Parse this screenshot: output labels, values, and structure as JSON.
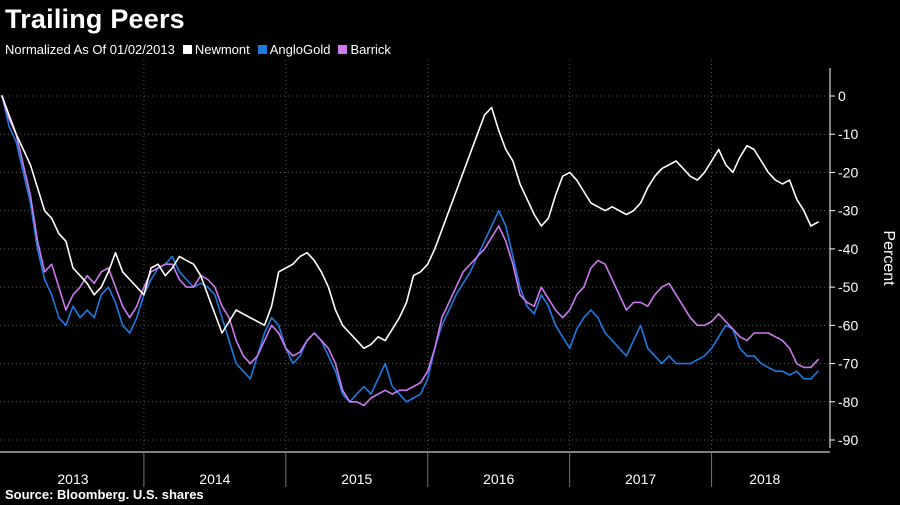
{
  "title": "Trailing Peers",
  "subtitle": "Normalized As Of 01/02/2013",
  "source": "Source: Bloomberg. U.S. shares",
  "colors": {
    "newmont": "#ffffff",
    "anglogold": "#1f7ae0",
    "barrick": "#cc7af0"
  },
  "chart_data": {
    "type": "line",
    "title": "Trailing Peers",
    "subtitle": "Normalized As Of 01/02/2013",
    "xlabel": "",
    "ylabel": "Percent",
    "ylim": [
      -90,
      0
    ],
    "xlim": [
      2013.0,
      2018.75
    ],
    "yticks": [
      0,
      -10,
      -20,
      -30,
      -40,
      -50,
      -60,
      -70,
      -80,
      -90
    ],
    "ytick_labels": [
      "0",
      "-10",
      "-20",
      "-30",
      "-40",
      "-50",
      "-60",
      "-70",
      "-80",
      "-90"
    ],
    "xticks": [
      "2013",
      "2014",
      "2015",
      "2016",
      "2017",
      "2018"
    ],
    "grid": true,
    "legend_position": "top-left",
    "series": [
      {
        "name": "Newmont",
        "color": "#ffffff",
        "x": [
          2013.0,
          2013.05,
          2013.1,
          2013.15,
          2013.2,
          2013.25,
          2013.3,
          2013.35,
          2013.4,
          2013.45,
          2013.5,
          2013.55,
          2013.6,
          2013.65,
          2013.7,
          2013.75,
          2013.8,
          2013.85,
          2013.9,
          2013.95,
          2014.0,
          2014.05,
          2014.1,
          2014.15,
          2014.2,
          2014.25,
          2014.3,
          2014.35,
          2014.4,
          2014.45,
          2014.5,
          2014.55,
          2014.6,
          2014.65,
          2014.7,
          2014.75,
          2014.8,
          2014.85,
          2014.9,
          2014.95,
          2015.0,
          2015.05,
          2015.1,
          2015.15,
          2015.2,
          2015.25,
          2015.3,
          2015.35,
          2015.4,
          2015.45,
          2015.5,
          2015.55,
          2015.6,
          2015.65,
          2015.7,
          2015.75,
          2015.8,
          2015.85,
          2015.9,
          2015.95,
          2016.0,
          2016.05,
          2016.1,
          2016.15,
          2016.2,
          2016.25,
          2016.3,
          2016.35,
          2016.4,
          2016.45,
          2016.5,
          2016.55,
          2016.6,
          2016.65,
          2016.7,
          2016.75,
          2016.8,
          2016.85,
          2016.9,
          2016.95,
          2017.0,
          2017.05,
          2017.1,
          2017.15,
          2017.2,
          2017.25,
          2017.3,
          2017.35,
          2017.4,
          2017.45,
          2017.5,
          2017.55,
          2017.6,
          2017.65,
          2017.7,
          2017.75,
          2017.8,
          2017.85,
          2017.9,
          2017.95,
          2018.0,
          2018.05,
          2018.1,
          2018.15,
          2018.2,
          2018.25,
          2018.3,
          2018.35,
          2018.4,
          2018.45,
          2018.5,
          2018.55,
          2018.6,
          2018.65,
          2018.7,
          2018.75
        ],
        "values": [
          0,
          -5,
          -10,
          -14,
          -18,
          -24,
          -30,
          -32,
          -36,
          -38,
          -45,
          -47,
          -49,
          -52,
          -50,
          -46,
          -41,
          -46,
          -48,
          -50,
          -52,
          -45,
          -44,
          -47,
          -45,
          -42,
          -43,
          -44,
          -47,
          -52,
          -57,
          -62,
          -59,
          -56,
          -57,
          -58,
          -59,
          -60,
          -55,
          -46,
          -45,
          -44,
          -42,
          -41,
          -43,
          -46,
          -50,
          -56,
          -60,
          -62,
          -64,
          -66,
          -65,
          -63,
          -64,
          -61,
          -58,
          -54,
          -47,
          -46,
          -44,
          -40,
          -35,
          -30,
          -25,
          -20,
          -15,
          -10,
          -5,
          -3,
          -9,
          -14,
          -17,
          -23,
          -27,
          -31,
          -34,
          -32,
          -26,
          -21,
          -20,
          -22,
          -25,
          -28,
          -29,
          -30,
          -29,
          -30,
          -31,
          -30,
          -28,
          -24,
          -21,
          -19,
          -18,
          -17,
          -19,
          -21,
          -22,
          -20,
          -17,
          -14,
          -18,
          -20,
          -16,
          -13,
          -14,
          -17,
          -20,
          -22,
          -23,
          -22,
          -27,
          -30,
          -34,
          -33
        ]
      },
      {
        "name": "AngloGold",
        "color": "#1f7ae0",
        "x": [
          2013.0,
          2013.05,
          2013.1,
          2013.15,
          2013.2,
          2013.25,
          2013.3,
          2013.35,
          2013.4,
          2013.45,
          2013.5,
          2013.55,
          2013.6,
          2013.65,
          2013.7,
          2013.75,
          2013.8,
          2013.85,
          2013.9,
          2013.95,
          2014.0,
          2014.05,
          2014.1,
          2014.15,
          2014.2,
          2014.25,
          2014.3,
          2014.35,
          2014.4,
          2014.45,
          2014.5,
          2014.55,
          2014.6,
          2014.65,
          2014.7,
          2014.75,
          2014.8,
          2014.85,
          2014.9,
          2014.95,
          2015.0,
          2015.05,
          2015.1,
          2015.15,
          2015.2,
          2015.25,
          2015.3,
          2015.35,
          2015.4,
          2015.45,
          2015.5,
          2015.55,
          2015.6,
          2015.65,
          2015.7,
          2015.75,
          2015.8,
          2015.85,
          2015.9,
          2015.95,
          2016.0,
          2016.05,
          2016.1,
          2016.15,
          2016.2,
          2016.25,
          2016.3,
          2016.35,
          2016.4,
          2016.45,
          2016.5,
          2016.55,
          2016.6,
          2016.65,
          2016.7,
          2016.75,
          2016.8,
          2016.85,
          2016.9,
          2016.95,
          2017.0,
          2017.05,
          2017.1,
          2017.15,
          2017.2,
          2017.25,
          2017.3,
          2017.35,
          2017.4,
          2017.45,
          2017.5,
          2017.55,
          2017.6,
          2017.65,
          2017.7,
          2017.75,
          2017.8,
          2017.85,
          2017.9,
          2017.95,
          2018.0,
          2018.05,
          2018.1,
          2018.15,
          2018.2,
          2018.25,
          2018.3,
          2018.35,
          2018.4,
          2018.45,
          2018.5,
          2018.55,
          2018.6,
          2018.65,
          2018.7,
          2018.75
        ],
        "values": [
          0,
          -8,
          -12,
          -20,
          -28,
          -40,
          -48,
          -52,
          -58,
          -60,
          -55,
          -58,
          -56,
          -58,
          -52,
          -50,
          -54,
          -60,
          -62,
          -58,
          -52,
          -48,
          -45,
          -44,
          -42,
          -46,
          -48,
          -50,
          -49,
          -50,
          -52,
          -58,
          -64,
          -70,
          -72,
          -74,
          -68,
          -62,
          -58,
          -60,
          -66,
          -70,
          -68,
          -64,
          -62,
          -64,
          -68,
          -72,
          -78,
          -80,
          -78,
          -76,
          -78,
          -74,
          -70,
          -76,
          -78,
          -80,
          -79,
          -78,
          -74,
          -66,
          -60,
          -56,
          -52,
          -49,
          -46,
          -42,
          -38,
          -34,
          -30,
          -34,
          -42,
          -50,
          -55,
          -57,
          -52,
          -55,
          -60,
          -63,
          -66,
          -61,
          -58,
          -56,
          -58,
          -62,
          -64,
          -66,
          -68,
          -64,
          -60,
          -66,
          -68,
          -70,
          -68,
          -70,
          -70,
          -70,
          -69,
          -68,
          -66,
          -63,
          -60,
          -61,
          -66,
          -68,
          -68,
          -70,
          -71,
          -72,
          -72,
          -73,
          -72,
          -74,
          -74,
          -72
        ]
      },
      {
        "name": "Barrick",
        "color": "#cc7af0",
        "x": [
          2013.0,
          2013.05,
          2013.1,
          2013.15,
          2013.2,
          2013.25,
          2013.3,
          2013.35,
          2013.4,
          2013.45,
          2013.5,
          2013.55,
          2013.6,
          2013.65,
          2013.7,
          2013.75,
          2013.8,
          2013.85,
          2013.9,
          2013.95,
          2014.0,
          2014.05,
          2014.1,
          2014.15,
          2014.2,
          2014.25,
          2014.3,
          2014.35,
          2014.4,
          2014.45,
          2014.5,
          2014.55,
          2014.6,
          2014.65,
          2014.7,
          2014.75,
          2014.8,
          2014.85,
          2014.9,
          2014.95,
          2015.0,
          2015.05,
          2015.1,
          2015.15,
          2015.2,
          2015.25,
          2015.3,
          2015.35,
          2015.4,
          2015.45,
          2015.5,
          2015.55,
          2015.6,
          2015.65,
          2015.7,
          2015.75,
          2015.8,
          2015.85,
          2015.9,
          2015.95,
          2016.0,
          2016.05,
          2016.1,
          2016.15,
          2016.2,
          2016.25,
          2016.3,
          2016.35,
          2016.4,
          2016.45,
          2016.5,
          2016.55,
          2016.6,
          2016.65,
          2016.7,
          2016.75,
          2016.8,
          2016.85,
          2016.9,
          2016.95,
          2017.0,
          2017.05,
          2017.1,
          2017.15,
          2017.2,
          2017.25,
          2017.3,
          2017.35,
          2017.4,
          2017.45,
          2017.5,
          2017.55,
          2017.6,
          2017.65,
          2017.7,
          2017.75,
          2017.8,
          2017.85,
          2017.9,
          2017.95,
          2018.0,
          2018.05,
          2018.1,
          2018.15,
          2018.2,
          2018.25,
          2018.3,
          2018.35,
          2018.4,
          2018.45,
          2018.5,
          2018.55,
          2018.6,
          2018.65,
          2018.7,
          2018.75
        ],
        "values": [
          0,
          -6,
          -10,
          -18,
          -26,
          -38,
          -46,
          -44,
          -50,
          -56,
          -52,
          -50,
          -47,
          -49,
          -46,
          -45,
          -50,
          -55,
          -58,
          -55,
          -50,
          -46,
          -45,
          -44,
          -44,
          -48,
          -50,
          -50,
          -47,
          -48,
          -50,
          -55,
          -58,
          -64,
          -68,
          -70,
          -68,
          -64,
          -60,
          -62,
          -66,
          -68,
          -67,
          -64,
          -62,
          -64,
          -66,
          -70,
          -77,
          -80,
          -80,
          -81,
          -79,
          -78,
          -77,
          -78,
          -77,
          -77,
          -76,
          -75,
          -72,
          -66,
          -58,
          -54,
          -50,
          -46,
          -44,
          -42,
          -40,
          -37,
          -34,
          -38,
          -44,
          -52,
          -54,
          -55,
          -50,
          -53,
          -56,
          -58,
          -56,
          -52,
          -50,
          -45,
          -43,
          -44,
          -48,
          -52,
          -56,
          -54,
          -54,
          -55,
          -52,
          -50,
          -49,
          -52,
          -55,
          -58,
          -60,
          -60,
          -59,
          -57,
          -59,
          -61,
          -63,
          -64,
          -62,
          -62,
          -62,
          -63,
          -64,
          -66,
          -70,
          -71,
          -71,
          -69
        ]
      }
    ]
  }
}
